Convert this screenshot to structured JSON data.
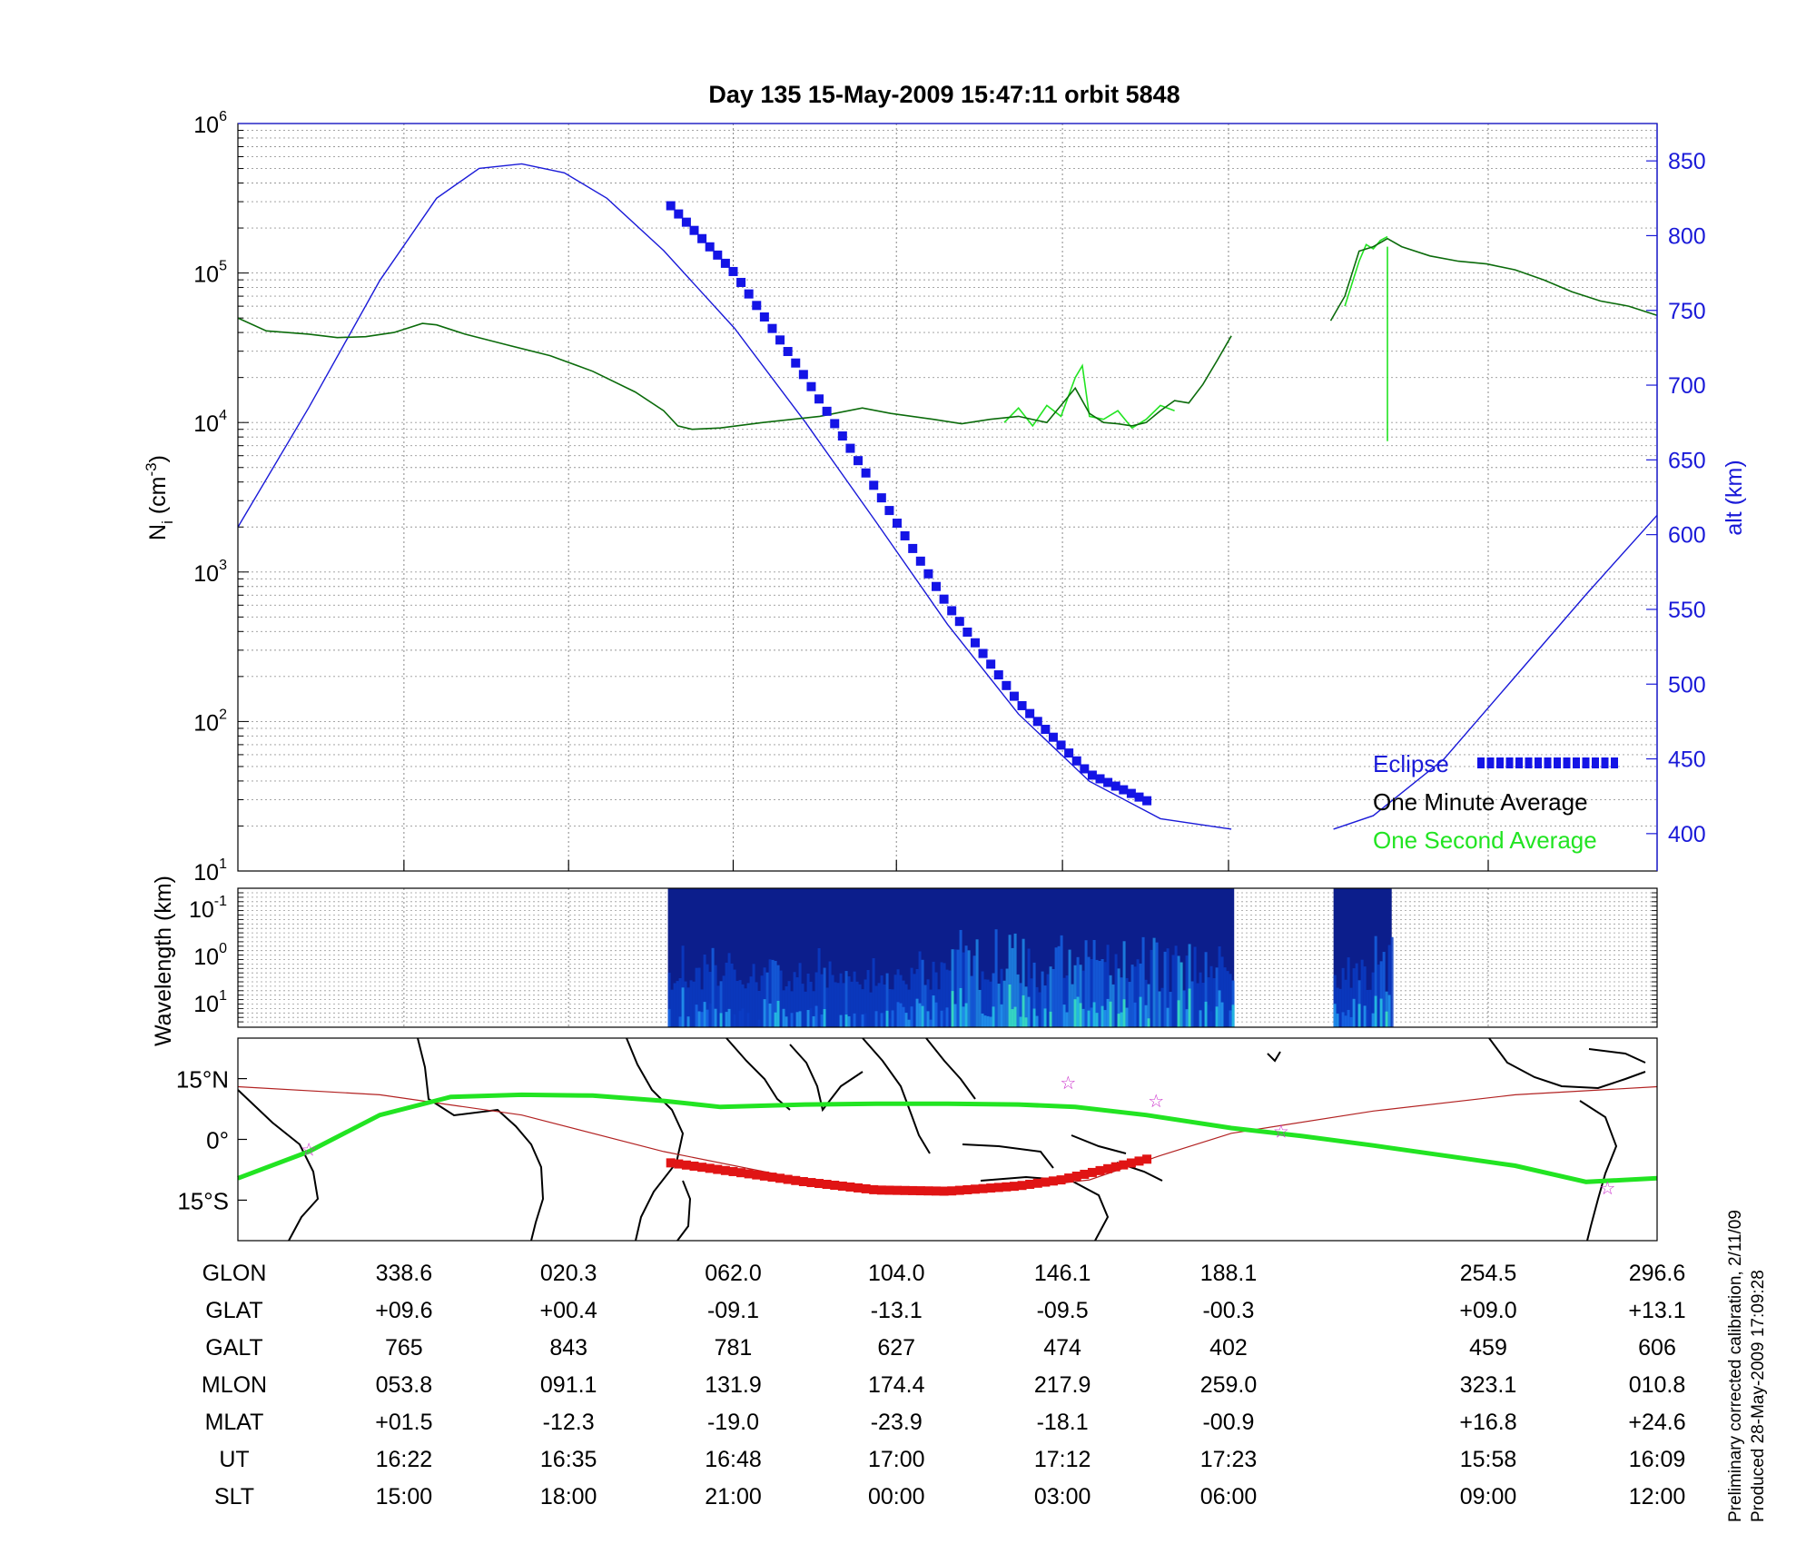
{
  "title": "Day 135  15-May-2009 15:47:11   orbit 5848",
  "colors": {
    "altitude": "#1a1ad8",
    "minute_average": "#0b6b0b",
    "second_average": "#22e422",
    "eclipse": "#1414e6",
    "map_eclipse": "#e01414",
    "map_track": "#22e422",
    "magnetic_equator": "#b22222",
    "star": "#cc33cc"
  },
  "chart_data": [
    {
      "type": "line",
      "ylabel_main": "N",
      "ylabel_sub": "i",
      "ylabel_unit_a": " (cm",
      "ylabel_unit_exp": "-3",
      "ylabel_unit_b": ")",
      "y2label": "alt (km)",
      "yscale": "log",
      "ylim": [
        10,
        1000000
      ],
      "y2lim": [
        375,
        875
      ],
      "yticks": [
        {
          "base": "10",
          "exp": "1",
          "value": 10
        },
        {
          "base": "10",
          "exp": "2",
          "value": 100
        },
        {
          "base": "10",
          "exp": "3",
          "value": 1000
        },
        {
          "base": "10",
          "exp": "4",
          "value": 10000
        },
        {
          "base": "10",
          "exp": "5",
          "value": 100000
        },
        {
          "base": "10",
          "exp": "6",
          "value": 1000000
        }
      ],
      "y2ticks": [
        "400",
        "450",
        "500",
        "550",
        "600",
        "650",
        "700",
        "750",
        "800",
        "850"
      ],
      "grid": true,
      "legend": [
        "Eclipse",
        "One Minute Average",
        "One Second Average"
      ],
      "legend_placement": "bottom-right",
      "x_domain": [
        0,
        100
      ],
      "altitude": [
        [
          0,
          605
        ],
        [
          5,
          685
        ],
        [
          10,
          770
        ],
        [
          14,
          825
        ],
        [
          17,
          845
        ],
        [
          20,
          848
        ],
        [
          23,
          842
        ],
        [
          26,
          825
        ],
        [
          30,
          790
        ],
        [
          35,
          738
        ],
        [
          40,
          675
        ],
        [
          45,
          608
        ],
        [
          50,
          540
        ],
        [
          55,
          480
        ],
        [
          60,
          435
        ],
        [
          65,
          410
        ],
        [
          70,
          403
        ],
        [
          70.2,
          null
        ],
        [
          77.2,
          403
        ],
        [
          80,
          412
        ],
        [
          85,
          450
        ],
        [
          90,
          505
        ],
        [
          95,
          560
        ],
        [
          100,
          613
        ]
      ],
      "ion_density_minute": [
        [
          0,
          50000
        ],
        [
          2,
          41000
        ],
        [
          5,
          39000
        ],
        [
          7,
          37000
        ],
        [
          9,
          37500
        ],
        [
          11,
          40000
        ],
        [
          13,
          46000
        ],
        [
          14,
          45000
        ],
        [
          16,
          39000
        ],
        [
          19,
          33000
        ],
        [
          22,
          28000
        ],
        [
          25,
          22000
        ],
        [
          28,
          16000
        ],
        [
          30,
          12000
        ],
        [
          31,
          9500
        ],
        [
          32,
          9000
        ],
        [
          34,
          9200
        ],
        [
          37,
          10000
        ],
        [
          41,
          11000
        ],
        [
          44,
          12500
        ],
        [
          46,
          11500
        ],
        [
          49,
          10500
        ],
        [
          51,
          9800
        ],
        [
          53,
          10500
        ],
        [
          55,
          11000
        ],
        [
          57,
          10000
        ],
        [
          58,
          13000
        ],
        [
          59,
          17000
        ],
        [
          60,
          11500
        ],
        [
          61,
          10000
        ],
        [
          62,
          9800
        ],
        [
          63,
          9500
        ],
        [
          64,
          10000
        ],
        [
          65,
          12000
        ],
        [
          66,
          14000
        ],
        [
          67,
          13500
        ],
        [
          68,
          18000
        ],
        [
          69,
          26000
        ],
        [
          70,
          38000
        ],
        [
          77,
          48000
        ],
        [
          78,
          70000
        ],
        [
          79,
          140000
        ],
        [
          80,
          150000
        ],
        [
          81,
          170000
        ],
        [
          82,
          150000
        ],
        [
          84,
          130000
        ],
        [
          86,
          120000
        ],
        [
          88,
          115000
        ],
        [
          90,
          105000
        ],
        [
          92,
          90000
        ],
        [
          94,
          75000
        ],
        [
          96,
          65000
        ],
        [
          98,
          60000
        ],
        [
          100,
          52000
        ]
      ],
      "ion_density_second": [
        [
          54,
          10000
        ],
        [
          55,
          12500
        ],
        [
          56,
          9500
        ],
        [
          57,
          13000
        ],
        [
          58,
          11000
        ],
        [
          59,
          20000
        ],
        [
          59.5,
          24000
        ],
        [
          60,
          11000
        ],
        [
          61,
          10500
        ],
        [
          62,
          12000
        ],
        [
          63,
          9200
        ],
        [
          64,
          10500
        ],
        [
          65,
          13000
        ],
        [
          66,
          12000
        ],
        [
          78,
          60000
        ],
        [
          79,
          120000
        ],
        [
          79.5,
          155000
        ],
        [
          80,
          145000
        ],
        [
          80.5,
          165000
        ],
        [
          81,
          175000
        ]
      ],
      "second_spike": [
        [
          81,
          7500
        ],
        [
          81,
          150000
        ]
      ],
      "eclipse_track": [
        [
          30.5,
          820
        ],
        [
          35,
          775
        ],
        [
          40,
          705
        ],
        [
          45,
          630
        ],
        [
          50,
          553
        ],
        [
          55,
          488
        ],
        [
          60,
          440
        ],
        [
          64.5,
          420
        ]
      ]
    },
    {
      "type": "heatmap",
      "ylabel": "Wavelength (km)",
      "yticks": [
        {
          "base": "10",
          "exp": "-1"
        },
        {
          "base": "10",
          "exp": "0"
        },
        {
          "base": "10",
          "exp": "1"
        }
      ],
      "blocks": [
        [
          30.3,
          70.2
        ],
        [
          77.2,
          81.3
        ]
      ]
    },
    {
      "type": "scatter",
      "lat_ticks": [
        "15°N",
        "0°",
        "15°S"
      ],
      "lat_range": [
        -25,
        25
      ],
      "track": [
        [
          0,
          -9.6
        ],
        [
          5,
          -3
        ],
        [
          10,
          6
        ],
        [
          15,
          10.5
        ],
        [
          20,
          11
        ],
        [
          25,
          10.8
        ],
        [
          30,
          9.5
        ],
        [
          34,
          8
        ],
        [
          40,
          8.6
        ],
        [
          45,
          8.8
        ],
        [
          50,
          8.8
        ],
        [
          55,
          8.6
        ],
        [
          59,
          8
        ],
        [
          64,
          6
        ],
        [
          70,
          2.8
        ],
        [
          75,
          0.8
        ],
        [
          80,
          -1.5
        ],
        [
          85,
          -4
        ],
        [
          90,
          -6.5
        ],
        [
          95,
          -10.5
        ],
        [
          100,
          -9.6
        ]
      ],
      "magnetic_equator": [
        [
          0,
          13
        ],
        [
          10,
          11
        ],
        [
          20,
          6
        ],
        [
          30,
          -3
        ],
        [
          40,
          -10
        ],
        [
          48,
          -13
        ],
        [
          55,
          -12
        ],
        [
          60,
          -10
        ],
        [
          65,
          -4
        ],
        [
          70,
          1.5
        ],
        [
          80,
          7
        ],
        [
          90,
          11
        ],
        [
          100,
          13
        ]
      ],
      "eclipse_track": [
        [
          30.5,
          -5.8
        ],
        [
          35,
          -8
        ],
        [
          40,
          -10.5
        ],
        [
          45,
          -12.5
        ],
        [
          50,
          -12.8
        ],
        [
          55,
          -11.5
        ],
        [
          58,
          -10
        ],
        [
          61,
          -7.5
        ],
        [
          64.5,
          -4.5
        ]
      ],
      "stars": [
        [
          5,
          -2.5
        ],
        [
          58.5,
          14
        ],
        [
          64.7,
          9.5
        ],
        [
          73.5,
          2
        ],
        [
          96.5,
          -12
        ]
      ]
    }
  ],
  "table": {
    "row_labels": [
      "GLON",
      "GLAT",
      "GALT",
      "MLON",
      "MLAT",
      "UT",
      "SLT"
    ],
    "columns": [
      {
        "x": 11.7,
        "values": [
          "338.6",
          "+09.6",
          "765",
          "053.8",
          "+01.5",
          "16:22",
          "15:00"
        ]
      },
      {
        "x": 23.3,
        "values": [
          "020.3",
          "+00.4",
          "843",
          "091.1",
          "-12.3",
          "16:35",
          "18:00"
        ]
      },
      {
        "x": 34.9,
        "values": [
          "062.0",
          "-09.1",
          "781",
          "131.9",
          "-19.0",
          "16:48",
          "21:00"
        ]
      },
      {
        "x": 46.4,
        "values": [
          "104.0",
          "-13.1",
          "627",
          "174.4",
          "-23.9",
          "17:00",
          "00:00"
        ]
      },
      {
        "x": 58.1,
        "values": [
          "146.1",
          "-09.5",
          "474",
          "217.9",
          "-18.1",
          "17:12",
          "03:00"
        ]
      },
      {
        "x": 69.8,
        "values": [
          "188.1",
          "-00.3",
          "402",
          "259.0",
          "-00.9",
          "17:23",
          "06:00"
        ]
      },
      {
        "x": 88.1,
        "values": [
          "254.5",
          "+09.0",
          "459",
          "323.1",
          "+16.8",
          "15:58",
          "09:00"
        ]
      },
      {
        "x": 100,
        "values": [
          "296.6",
          "+13.1",
          "606",
          "010.8",
          "+24.6",
          "16:09",
          "12:00"
        ]
      }
    ]
  },
  "footer": {
    "calibration": "Preliminary corrected calibration, 2/11/09",
    "produced": "Produced 28-May-2009 17:09:28"
  }
}
